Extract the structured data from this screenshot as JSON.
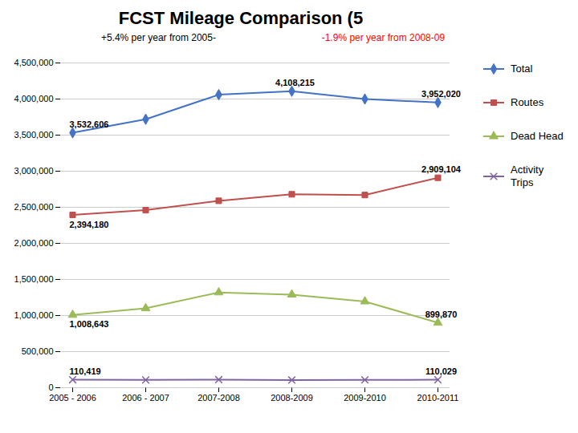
{
  "chart_data": {
    "type": "line",
    "title": "FCST Mileage Comparison (5",
    "subtitle": [
      {
        "text": "+5.4% per year from 2005-",
        "color": "black"
      },
      {
        "text": "-1.9% per year from 2008-09",
        "color": "red"
      }
    ],
    "categories": [
      "2005 - 2006",
      "2006 - 2007",
      "2007-2008",
      "2008-2009",
      "2009-2010",
      "2010-2011"
    ],
    "series": [
      {
        "name": "Total",
        "color": "#4472C4",
        "marker": "diamond",
        "values": [
          3532606,
          3720000,
          4060000,
          4108215,
          4000000,
          3952020
        ],
        "value_labels": [
          "3,532,606",
          null,
          null,
          "4,108,215",
          null,
          "3,952,020"
        ]
      },
      {
        "name": "Routes",
        "color": "#C0504D",
        "marker": "square",
        "values": [
          2394180,
          2460000,
          2590000,
          2680000,
          2670000,
          2909104
        ],
        "value_labels": [
          "2,394,180",
          null,
          null,
          null,
          null,
          "2,909,104"
        ]
      },
      {
        "name": "Dead Head",
        "color": "#9BBB59",
        "marker": "triangle",
        "values": [
          1008643,
          1100000,
          1320000,
          1290000,
          1195000,
          899870
        ],
        "value_labels": [
          "1,008,643",
          null,
          null,
          null,
          null,
          "899,870"
        ]
      },
      {
        "name": "Activity\nTrips",
        "color": "#8064A2",
        "marker": "x",
        "values": [
          110419,
          107000,
          112000,
          106000,
          108000,
          110029
        ],
        "value_labels": [
          "110,419",
          null,
          null,
          null,
          null,
          "110,029"
        ]
      }
    ],
    "ylim": [
      0,
      4500000
    ],
    "yticks": [
      0,
      {
        "value": 500000,
        "label": "500,000"
      },
      {
        "value": 1000000,
        "label": "1,000,000"
      },
      {
        "value": 1500000,
        "label": "1,500,000"
      },
      {
        "value": 2000000,
        "label": "2,000,000"
      },
      {
        "value": 2500000,
        "label": "2,500,000"
      },
      {
        "value": 3000000,
        "label": "3,000,000"
      },
      {
        "value": 3500000,
        "label": "3,500,000"
      },
      {
        "value": 4000000,
        "label": "4,000,000"
      },
      {
        "value": 4500000,
        "label": "4,500,000"
      }
    ],
    "grid": true,
    "legend": "right",
    "data_labels": true
  }
}
